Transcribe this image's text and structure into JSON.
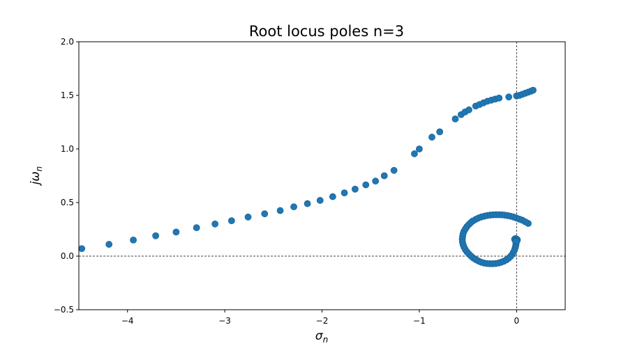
{
  "chart_data": {
    "type": "scatter",
    "title": "Root locus poles n=3",
    "xlabel": {
      "base": "σ",
      "sub": "n"
    },
    "ylabel": {
      "prefix": "j",
      "base": "ω",
      "sub": "n"
    },
    "xlim": [
      -4.5,
      0.5
    ],
    "ylim": [
      -0.5,
      2.0
    ],
    "xticks": [
      -4,
      -3,
      -2,
      -1,
      0
    ],
    "xtick_labels": [
      "−4",
      "−3",
      "−2",
      "−1",
      "0"
    ],
    "yticks": [
      -0.5,
      0.0,
      0.5,
      1.0,
      1.5,
      2.0
    ],
    "ytick_labels": [
      "−0.5",
      "0.0",
      "0.5",
      "1.0",
      "1.5",
      "2.0"
    ],
    "reference_lines": {
      "x": 0,
      "y": 0,
      "style": "dashed"
    },
    "marker_color": "#1f77b4",
    "grid": false,
    "series": [
      {
        "points": [
          [
            -4.47,
            0.07
          ],
          [
            -4.19,
            0.11
          ],
          [
            -3.94,
            0.15
          ],
          [
            -3.71,
            0.19
          ],
          [
            -3.5,
            0.225
          ],
          [
            -3.29,
            0.265
          ],
          [
            -3.1,
            0.3
          ],
          [
            -2.93,
            0.33
          ],
          [
            -2.76,
            0.365
          ],
          [
            -2.59,
            0.395
          ],
          [
            -2.43,
            0.425
          ],
          [
            -2.29,
            0.46
          ],
          [
            -2.15,
            0.49
          ],
          [
            -2.02,
            0.52
          ],
          [
            -1.89,
            0.555
          ],
          [
            -1.77,
            0.59
          ],
          [
            -1.66,
            0.625
          ],
          [
            -1.55,
            0.665
          ],
          [
            -1.45,
            0.7
          ],
          [
            -1.36,
            0.75
          ],
          [
            -1.26,
            0.8
          ],
          [
            -1.05,
            0.955
          ],
          [
            -1.0,
            1.0
          ],
          [
            -0.87,
            1.11
          ],
          [
            -0.79,
            1.16
          ],
          [
            -0.63,
            1.28
          ],
          [
            -0.57,
            1.32
          ],
          [
            -0.53,
            1.345
          ],
          [
            -0.49,
            1.365
          ],
          [
            -0.42,
            1.4
          ],
          [
            -0.38,
            1.415
          ],
          [
            -0.34,
            1.43
          ],
          [
            -0.3,
            1.445
          ],
          [
            -0.26,
            1.455
          ],
          [
            -0.22,
            1.465
          ],
          [
            -0.18,
            1.475
          ],
          [
            -0.08,
            1.485
          ],
          [
            0.0,
            1.495
          ],
          [
            0.03,
            1.5
          ],
          [
            0.06,
            1.51
          ],
          [
            0.09,
            1.52
          ],
          [
            0.12,
            1.53
          ],
          [
            0.15,
            1.54
          ],
          [
            0.17,
            1.548
          ]
        ]
      },
      {
        "points": [
          [
            0.12,
            0.305
          ],
          [
            0.09,
            0.32
          ],
          [
            0.06,
            0.335
          ],
          [
            0.03,
            0.345
          ],
          [
            0.0,
            0.355
          ],
          [
            -0.03,
            0.365
          ],
          [
            -0.06,
            0.372
          ],
          [
            -0.09,
            0.378
          ],
          [
            -0.12,
            0.382
          ],
          [
            -0.15,
            0.385
          ],
          [
            -0.18,
            0.386
          ],
          [
            -0.21,
            0.386
          ],
          [
            -0.24,
            0.385
          ],
          [
            -0.27,
            0.383
          ],
          [
            -0.3,
            0.379
          ],
          [
            -0.33,
            0.373
          ],
          [
            -0.36,
            0.366
          ],
          [
            -0.39,
            0.356
          ],
          [
            -0.42,
            0.343
          ],
          [
            -0.45,
            0.328
          ],
          [
            -0.47,
            0.313
          ],
          [
            -0.49,
            0.296
          ],
          [
            -0.51,
            0.276
          ],
          [
            -0.525,
            0.255
          ],
          [
            -0.54,
            0.232
          ],
          [
            -0.55,
            0.208
          ],
          [
            -0.555,
            0.183
          ],
          [
            -0.558,
            0.158
          ],
          [
            -0.556,
            0.133
          ],
          [
            -0.55,
            0.108
          ],
          [
            -0.54,
            0.085
          ],
          [
            -0.527,
            0.062
          ],
          [
            -0.51,
            0.04
          ],
          [
            -0.49,
            0.02
          ],
          [
            -0.468,
            0.0
          ],
          [
            -0.445,
            -0.017
          ],
          [
            -0.42,
            -0.032
          ],
          [
            -0.393,
            -0.045
          ],
          [
            -0.365,
            -0.056
          ],
          [
            -0.335,
            -0.064
          ],
          [
            -0.305,
            -0.069
          ],
          [
            -0.275,
            -0.071
          ],
          [
            -0.245,
            -0.071
          ],
          [
            -0.215,
            -0.069
          ],
          [
            -0.185,
            -0.064
          ],
          [
            -0.158,
            -0.057
          ],
          [
            -0.13,
            -0.047
          ],
          [
            -0.105,
            -0.035
          ],
          [
            -0.082,
            -0.02
          ],
          [
            -0.062,
            -0.003
          ],
          [
            -0.045,
            0.016
          ],
          [
            -0.032,
            0.037
          ],
          [
            -0.021,
            0.058
          ],
          [
            -0.013,
            0.08
          ],
          [
            -0.008,
            0.1
          ],
          [
            -0.005,
            0.118
          ],
          [
            -0.008,
            0.135
          ],
          [
            -0.014,
            0.148
          ],
          [
            -0.02,
            0.158
          ],
          [
            -0.012,
            0.164
          ],
          [
            0.0,
            0.16
          ],
          [
            0.008,
            0.152
          ],
          [
            0.005,
            0.145
          ],
          [
            -0.005,
            0.14
          ]
        ]
      }
    ]
  }
}
